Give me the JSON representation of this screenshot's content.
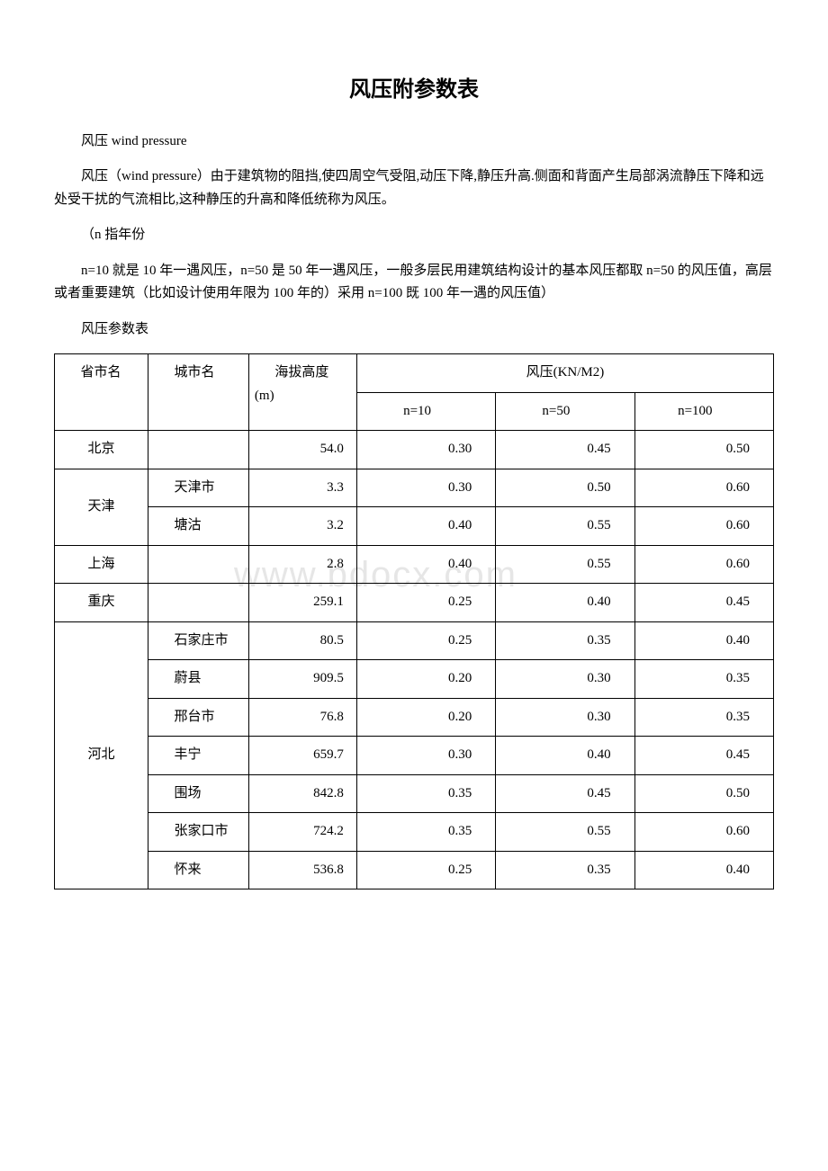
{
  "title": "风压附参数表",
  "paragraphs": {
    "p1": "风压 wind pressure",
    "p2": "风压（wind pressure）由于建筑物的阻挡,使四周空气受阻,动压下降,静压升高.侧面和背面产生局部涡流静压下降和远处受干扰的气流相比,这种静压的升高和降低统称为风压。",
    "p3": "（n 指年份",
    "p4": "n=10 就是 10 年一遇风压，n=50 是 50 年一遇风压，一般多层民用建筑结构设计的基本风压都取 n=50 的风压值，高层或者重要建筑（比如设计使用年限为 100 年的）采用 n=100 既 100 年一遇的风压值）",
    "p5": "风压参数表"
  },
  "watermark": "www.bdocx.com",
  "table": {
    "headers": {
      "province": "省市名",
      "city": "城市名",
      "altitude": "海拔高度(m)",
      "windpressure": "风压(KN/M2)",
      "n10": "n=10",
      "n50": "n=50",
      "n100": "n=100"
    },
    "rows": [
      {
        "province": "北京",
        "city": "",
        "alt": "54.0",
        "n10": "0.30",
        "n50": "0.45",
        "n100": "0.50"
      },
      {
        "province": "天津",
        "city": "天津市",
        "alt": "3.3",
        "n10": "0.30",
        "n50": "0.50",
        "n100": "0.60"
      },
      {
        "province": "",
        "city": "塘沽",
        "alt": "3.2",
        "n10": "0.40",
        "n50": "0.55",
        "n100": "0.60"
      },
      {
        "province": "上海",
        "city": "",
        "alt": "2.8",
        "n10": "0.40",
        "n50": "0.55",
        "n100": "0.60"
      },
      {
        "province": "重庆",
        "city": "",
        "alt": "259.1",
        "n10": "0.25",
        "n50": "0.40",
        "n100": "0.45"
      },
      {
        "province": "河北",
        "city": "石家庄市",
        "alt": "80.5",
        "n10": "0.25",
        "n50": "0.35",
        "n100": "0.40"
      },
      {
        "province": "",
        "city": "蔚县",
        "alt": "909.5",
        "n10": "0.20",
        "n50": "0.30",
        "n100": "0.35"
      },
      {
        "province": "",
        "city": "邢台市",
        "alt": "76.8",
        "n10": "0.20",
        "n50": "0.30",
        "n100": "0.35"
      },
      {
        "province": "",
        "city": "丰宁",
        "alt": "659.7",
        "n10": "0.30",
        "n50": "0.40",
        "n100": "0.45"
      },
      {
        "province": "",
        "city": "围场",
        "alt": "842.8",
        "n10": "0.35",
        "n50": "0.45",
        "n100": "0.50"
      },
      {
        "province": "",
        "city": "张家口市",
        "alt": "724.2",
        "n10": "0.35",
        "n50": "0.55",
        "n100": "0.60"
      },
      {
        "province": "",
        "city": "怀来",
        "alt": "536.8",
        "n10": "0.25",
        "n50": "0.35",
        "n100": "0.40"
      }
    ],
    "spans": {
      "tianjin": 2,
      "hebei": 7
    }
  }
}
